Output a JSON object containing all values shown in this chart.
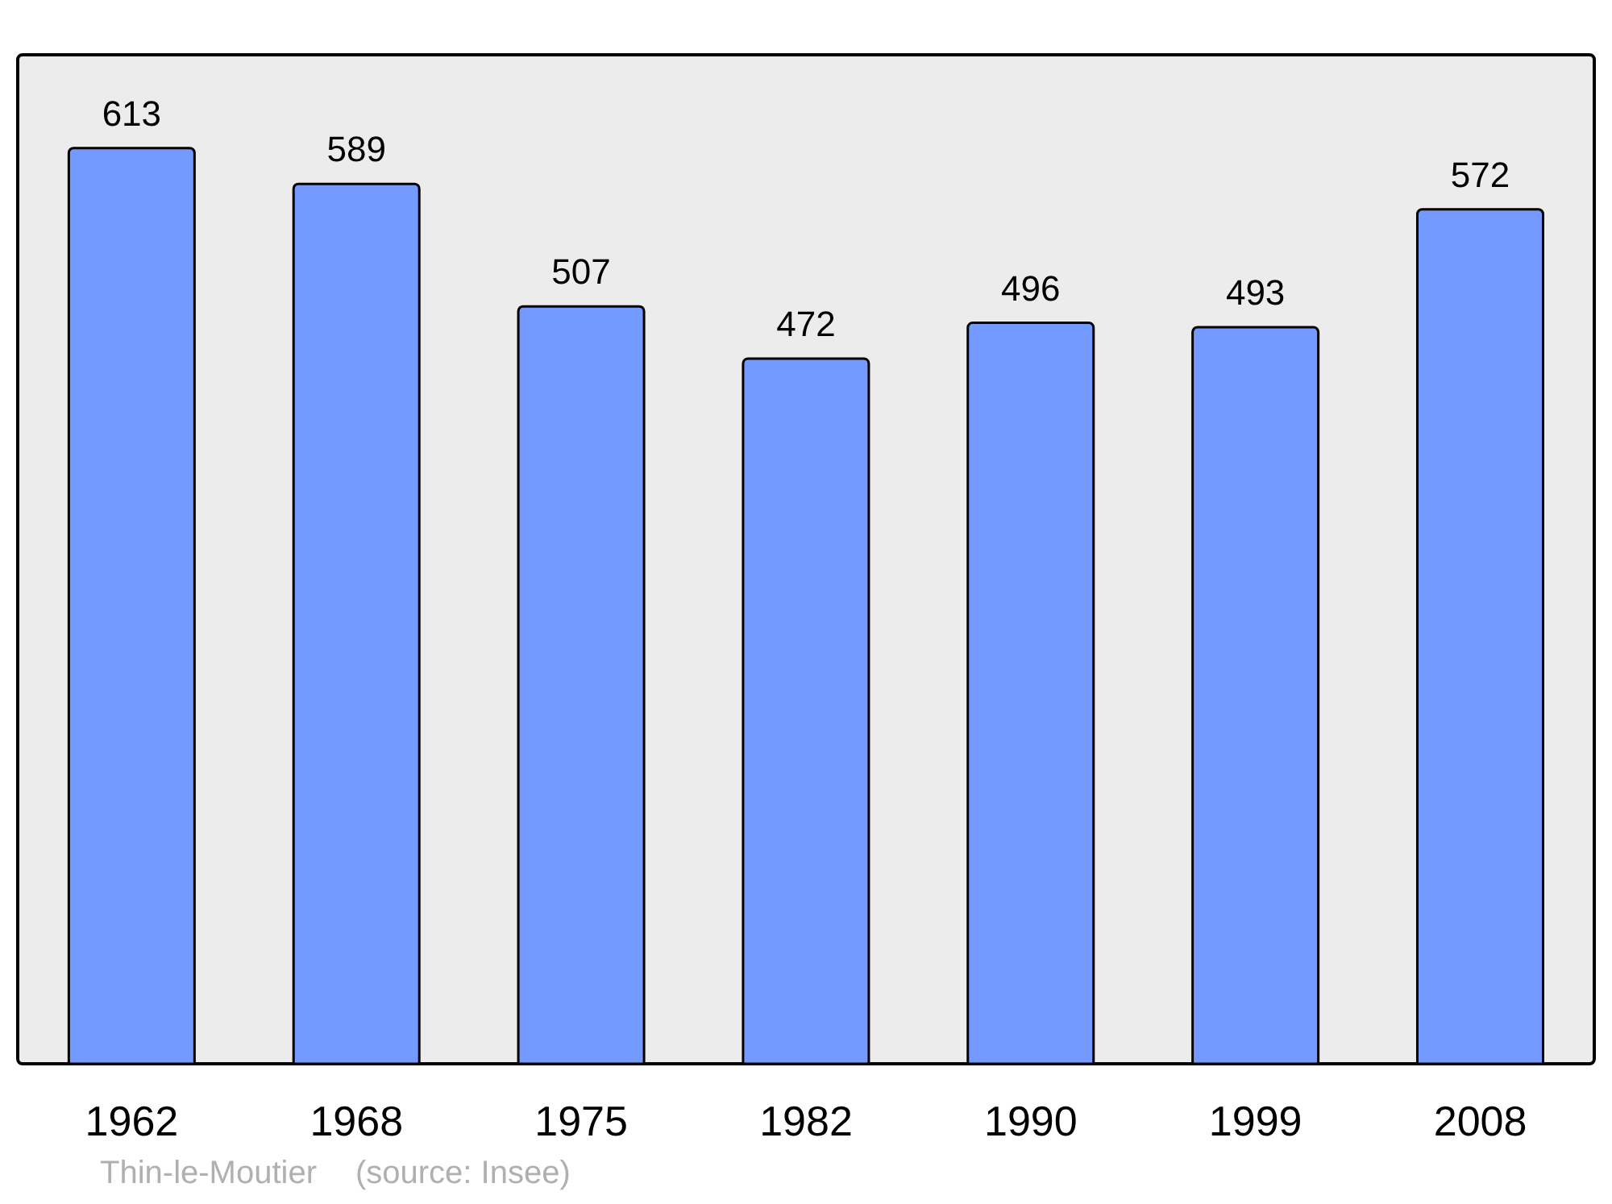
{
  "chart_data": {
    "type": "bar",
    "categories": [
      "1962",
      "1968",
      "1975",
      "1982",
      "1990",
      "1999",
      "2008"
    ],
    "values": [
      613,
      589,
      507,
      472,
      496,
      493,
      572
    ],
    "color": "#7499ff",
    "data_labels": true,
    "annotations": [
      "Thin-le-Moutier",
      "(source: Insee)"
    ]
  }
}
